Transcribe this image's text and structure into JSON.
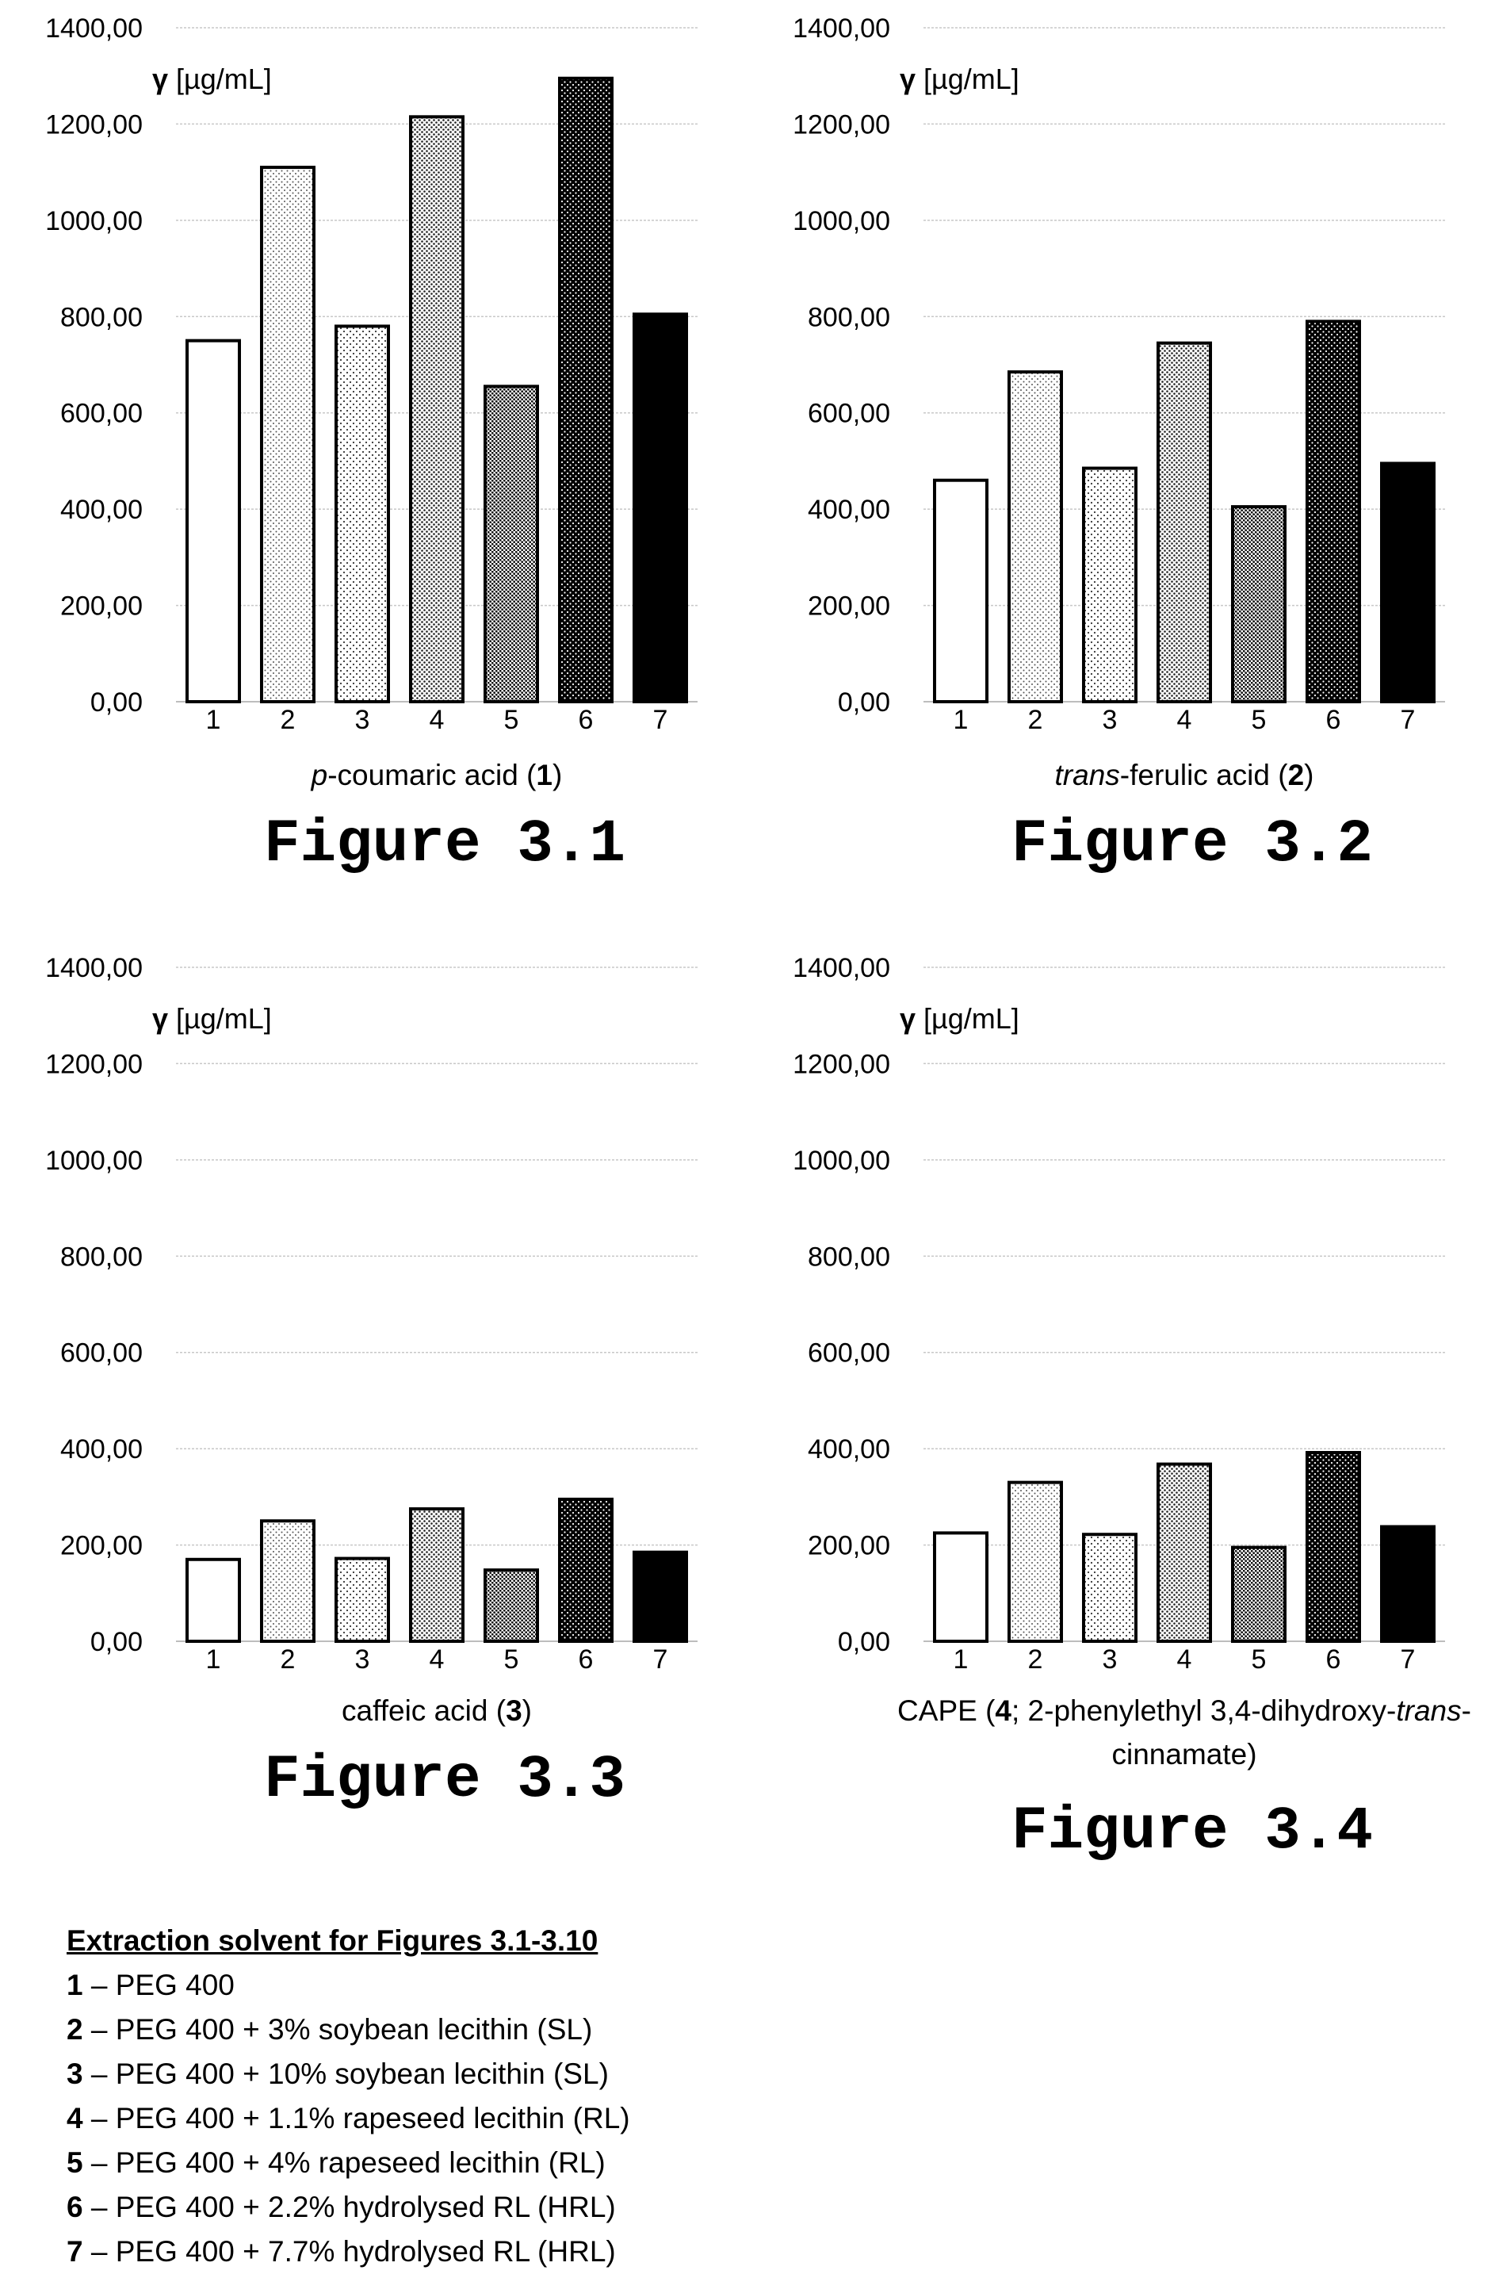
{
  "chart_data": [
    {
      "type": "bar",
      "categories": [
        "1",
        "2",
        "3",
        "4",
        "5",
        "6",
        "7"
      ],
      "values": [
        750,
        1110,
        780,
        1215,
        655,
        1295,
        805
      ],
      "ylim": [
        0,
        1400
      ],
      "yticks": [
        "0,00",
        "200,00",
        "400,00",
        "600,00",
        "800,00",
        "1000,00",
        "1200,00",
        "1400,00"
      ],
      "ylabel_symbol": "γ",
      "ylabel_unit": "[µg/mL]",
      "xlabel_parts": [
        {
          "text": "p",
          "style": "italic"
        },
        {
          "text": "-coumaric acid (",
          "style": "normal"
        },
        {
          "text": "1",
          "style": "bold"
        },
        {
          "text": ")",
          "style": "normal"
        }
      ],
      "figure_label": "Figure 3.1",
      "grid": true
    },
    {
      "type": "bar",
      "categories": [
        "1",
        "2",
        "3",
        "4",
        "5",
        "6",
        "7"
      ],
      "values": [
        460,
        685,
        485,
        745,
        405,
        790,
        495
      ],
      "ylim": [
        0,
        1400
      ],
      "yticks": [
        "0,00",
        "200,00",
        "400,00",
        "600,00",
        "800,00",
        "1000,00",
        "1200,00",
        "1400,00"
      ],
      "ylabel_symbol": "γ",
      "ylabel_unit": "[µg/mL]",
      "xlabel_parts": [
        {
          "text": "trans",
          "style": "italic"
        },
        {
          "text": "-ferulic acid (",
          "style": "normal"
        },
        {
          "text": "2",
          "style": "bold"
        },
        {
          "text": ")",
          "style": "normal"
        }
      ],
      "figure_label": "Figure 3.2",
      "grid": true
    },
    {
      "type": "bar",
      "categories": [
        "1",
        "2",
        "3",
        "4",
        "5",
        "6",
        "7"
      ],
      "values": [
        170,
        250,
        172,
        275,
        148,
        295,
        185
      ],
      "ylim": [
        0,
        1400
      ],
      "yticks": [
        "0,00",
        "200,00",
        "400,00",
        "600,00",
        "800,00",
        "1000,00",
        "1200,00",
        "1400,00"
      ],
      "ylabel_symbol": "γ",
      "ylabel_unit": "[µg/mL]",
      "xlabel_parts": [
        {
          "text": "caffeic acid (",
          "style": "normal"
        },
        {
          "text": "3",
          "style": "bold"
        },
        {
          "text": ")",
          "style": "normal"
        }
      ],
      "figure_label": "Figure 3.3",
      "grid": true
    },
    {
      "type": "bar",
      "categories": [
        "1",
        "2",
        "3",
        "4",
        "5",
        "6",
        "7"
      ],
      "values": [
        225,
        330,
        222,
        368,
        195,
        392,
        238
      ],
      "ylim": [
        0,
        1400
      ],
      "yticks": [
        "0,00",
        "200,00",
        "400,00",
        "600,00",
        "800,00",
        "1000,00",
        "1200,00",
        "1400,00"
      ],
      "ylabel_symbol": "γ",
      "ylabel_unit": "[µg/mL]",
      "xlabel_parts": [
        {
          "text": "CAPE (",
          "style": "normal"
        },
        {
          "text": "4",
          "style": "bold"
        },
        {
          "text": "; 2-phenylethyl 3,4-dihydroxy-",
          "style": "normal"
        },
        {
          "text": "trans",
          "style": "italic"
        },
        {
          "text": "-",
          "style": "normal"
        },
        {
          "text": "cinnamate)",
          "style": "normal",
          "newline": true
        }
      ],
      "figure_label": "Figure 3.4",
      "grid": true
    }
  ],
  "bar_patterns": [
    "white",
    "fine-dots",
    "sparse-dots",
    "medium-dots",
    "dense-dots",
    "black-with-white-dots",
    "solid-black"
  ],
  "legend": {
    "title": "Extraction solvent for Figures 3.1-3.10",
    "items": [
      {
        "num": "1",
        "text": " – PEG 400"
      },
      {
        "num": "2",
        "text": " – PEG 400 + 3% soybean lecithin (SL)"
      },
      {
        "num": "3",
        "text": " – PEG 400 + 10% soybean lecithin (SL)"
      },
      {
        "num": "4",
        "text": " – PEG 400 + 1.1% rapeseed lecithin (RL)"
      },
      {
        "num": "5",
        "text": " – PEG 400 + 4% rapeseed lecithin (RL)"
      },
      {
        "num": "6",
        "text": " – PEG 400 + 2.2% hydrolysed RL (HRL)"
      },
      {
        "num": "7",
        "text": " – PEG 400 + 7.7% hydrolysed RL (HRL)"
      }
    ]
  }
}
